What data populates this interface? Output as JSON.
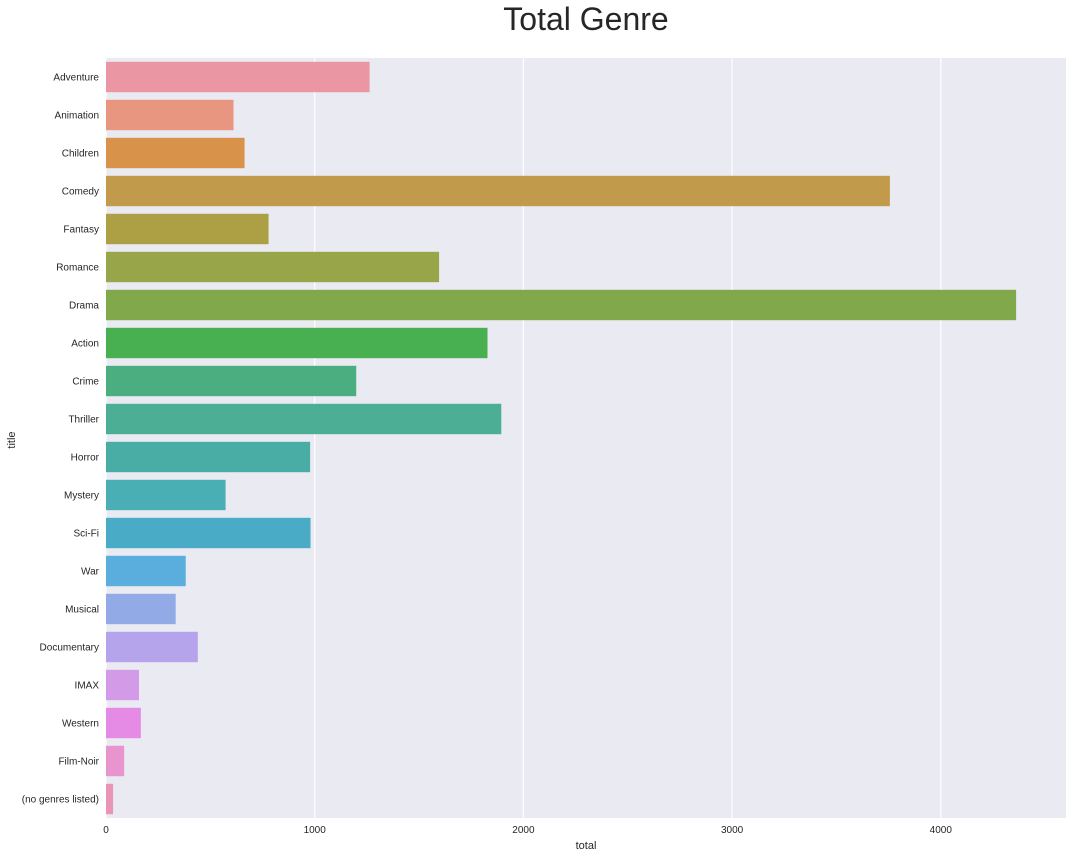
{
  "chart_data": {
    "type": "bar",
    "orientation": "horizontal",
    "title": "Total Genre",
    "xlabel": "total",
    "ylabel": "title",
    "xlim": [
      0,
      4600
    ],
    "xticks": [
      0,
      1000,
      2000,
      3000,
      4000
    ],
    "xtick_labels": [
      "0",
      "1000",
      "2000",
      "3000",
      "4000"
    ],
    "grid": true,
    "categories": [
      "Adventure",
      "Animation",
      "Children",
      "Comedy",
      "Fantasy",
      "Romance",
      "Drama",
      "Action",
      "Crime",
      "Thriller",
      "Horror",
      "Mystery",
      "Sci-Fi",
      "War",
      "Musical",
      "Documentary",
      "IMAX",
      "Western",
      "Film-Noir",
      "(no genres listed)"
    ],
    "values": [
      1263,
      611,
      664,
      3756,
      779,
      1596,
      4361,
      1828,
      1199,
      1894,
      978,
      573,
      980,
      382,
      334,
      440,
      158,
      167,
      87,
      34
    ],
    "colors": [
      "#ea96a3",
      "#e8967f",
      "#d8924a",
      "#c29a4b",
      "#ad9f44",
      "#98a548",
      "#81a84a",
      "#48b050",
      "#4bae80",
      "#4bae95",
      "#49aca5",
      "#4aaeb5",
      "#4aabc6",
      "#59aedd",
      "#92abe6",
      "#b5a4eb",
      "#d39ae7",
      "#e68be5",
      "#e894ce",
      "#ea94b8"
    ]
  }
}
